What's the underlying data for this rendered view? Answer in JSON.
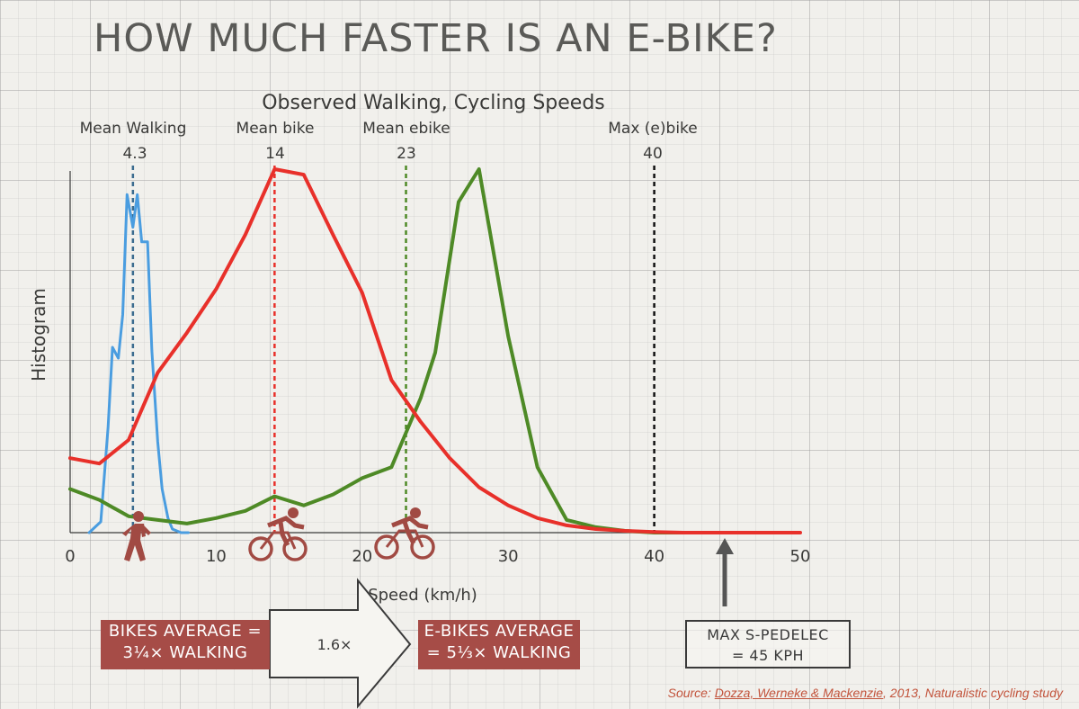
{
  "title": "HOW MUCH FASTER IS AN E-BIKE?",
  "colors": {
    "walking": "#4a9de0",
    "bike": "#e8302a",
    "ebike": "#4e8a26",
    "max": "#111111",
    "callout_bg": "#a64c47",
    "source": "#c2533b"
  },
  "chart_data": {
    "type": "line",
    "title": "Observed Walking, Cycling Speeds",
    "xlabel": "Speed (km/h)",
    "ylabel": "Histogram",
    "xlim": [
      0,
      50
    ],
    "ylim": [
      0,
      100
    ],
    "xticks": [
      0,
      10,
      20,
      30,
      40,
      50
    ],
    "grid": false,
    "series": [
      {
        "name": "Walking",
        "color": "#4a9de0",
        "x": [
          1.3,
          2.1,
          2.6,
          2.9,
          3.3,
          3.6,
          3.9,
          4.3,
          4.6,
          4.9,
          5.3,
          5.6,
          6.0,
          6.3,
          6.7,
          7.0,
          7.6,
          8.1
        ],
        "y": [
          0,
          3,
          29,
          51,
          48,
          60,
          93,
          84,
          93,
          80,
          80,
          50,
          25,
          12,
          4,
          1,
          0,
          0
        ]
      },
      {
        "name": "Bike",
        "color": "#e8302a",
        "x": [
          0,
          2,
          4,
          6,
          8,
          10,
          12,
          14,
          16,
          18,
          20,
          22,
          24,
          26,
          28,
          30,
          32,
          34,
          36,
          38,
          40,
          42,
          44,
          46,
          48,
          50
        ],
        "y": [
          20.5,
          19,
          25.5,
          44,
          55,
          67,
          82,
          100,
          98.5,
          82,
          66,
          42,
          30.5,
          20.5,
          12.5,
          7.5,
          4,
          2,
          1,
          0.5,
          0.2,
          0,
          0,
          0,
          0,
          0
        ]
      },
      {
        "name": "Ebike",
        "color": "#4e8a26",
        "x": [
          0,
          2,
          4,
          6,
          8,
          10,
          12,
          14,
          16,
          18,
          20,
          22,
          24,
          25,
          26.6,
          28,
          30,
          32,
          34,
          36,
          38,
          40,
          42
        ],
        "y": [
          12,
          9,
          4.5,
          3.5,
          2.5,
          4,
          6,
          10,
          7.5,
          10.5,
          15,
          18,
          37,
          49.5,
          91,
          100,
          54,
          18,
          3.5,
          1.5,
          0.5,
          0,
          0
        ]
      }
    ],
    "reference_lines": [
      {
        "name": "Mean Walking",
        "value": 4.3,
        "label": "Mean Walking",
        "value_label": "4.3",
        "color": "#3a6b8f"
      },
      {
        "name": "Mean bike",
        "value": 14,
        "label": "Mean bike",
        "value_label": "14",
        "color": "#e8302a"
      },
      {
        "name": "Mean ebike",
        "value": 23,
        "label": "Mean ebike",
        "value_label": "23",
        "color": "#4e8a26"
      },
      {
        "name": "Max (e)bike",
        "value": 40,
        "label": "Max (e)bike",
        "value_label": "40",
        "color": "#111111"
      }
    ],
    "max_marker": {
      "value": 45
    },
    "annotations": {
      "multiplier": "1.6×"
    }
  },
  "callouts": {
    "bikes": {
      "line1": "BIKES AVERAGE =",
      "line2": "3¼× WALKING"
    },
    "ebikes": {
      "line1": "E-BIKES AVERAGE",
      "line2": "= 5⅓× WALKING"
    },
    "max": {
      "line1": "MAX S-PEDELEC",
      "line2": "= 45 KPH"
    }
  },
  "source": {
    "prefix": "Source: ",
    "authors": "Dozza, Werneke & Mackenzie",
    "rest": ", 2013, Naturalistic cycling study"
  },
  "icons": [
    "walking-person-icon",
    "cyclist-icon",
    "ebike-cyclist-icon",
    "up-arrow-icon",
    "right-arrow-icon"
  ]
}
